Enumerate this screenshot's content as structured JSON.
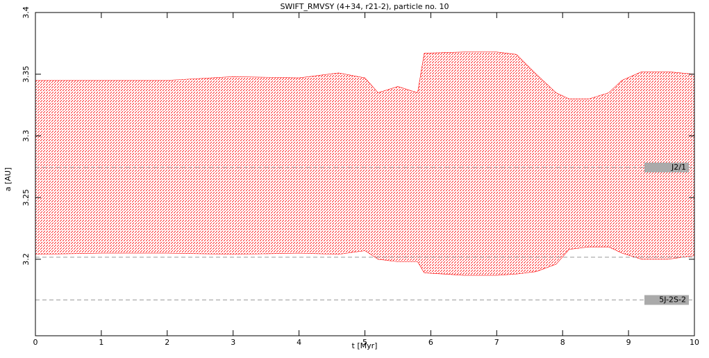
{
  "chart_data": {
    "type": "band",
    "title": "SWIFT_RMVSY (4+34, r21-2), particle no. 10",
    "x_label": "t [Myr]",
    "y_label": "a [AU]",
    "color": "#ff0000",
    "x": [
      0,
      1,
      2,
      3,
      4,
      4.6,
      5,
      5.2,
      5.5,
      5.8,
      5.9,
      6.5,
      7,
      7.3,
      7.6,
      7.9,
      8.1,
      8.4,
      8.7,
      8.9,
      9.2,
      9.6,
      10
    ],
    "upper": [
      3.345,
      3.345,
      3.345,
      3.348,
      3.347,
      3.351,
      3.347,
      3.335,
      3.34,
      3.335,
      3.367,
      3.368,
      3.368,
      3.366,
      3.35,
      3.335,
      3.33,
      3.33,
      3.335,
      3.345,
      3.352,
      3.352,
      3.35
    ],
    "lower": [
      3.204,
      3.205,
      3.205,
      3.204,
      3.205,
      3.204,
      3.207,
      3.2,
      3.198,
      3.198,
      3.189,
      3.187,
      3.187,
      3.188,
      3.19,
      3.196,
      3.208,
      3.21,
      3.21,
      3.205,
      3.2,
      3.2,
      3.203
    ],
    "resonances": [
      {
        "value": 3.2744,
        "label": "J2/1"
      },
      {
        "value": 3.167,
        "label": "5J-2S-2"
      },
      {
        "value": 3.2017
      }
    ],
    "xlim": [
      0,
      10
    ],
    "xticks": [
      0,
      1,
      2,
      3,
      4,
      5,
      6,
      7,
      8,
      9,
      10
    ],
    "ylim": [
      3.138,
      3.4
    ],
    "yticks": [
      3.2,
      3.25,
      3.3,
      3.35,
      3.4
    ]
  }
}
